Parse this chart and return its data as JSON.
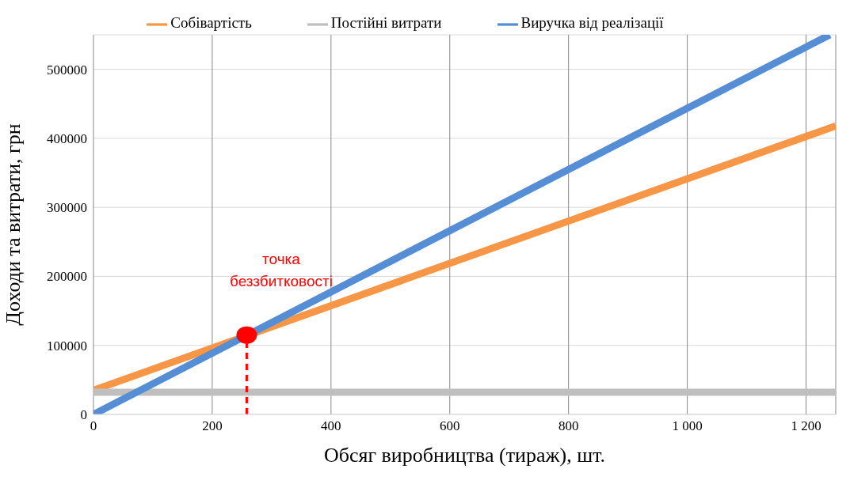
{
  "chart_data": {
    "type": "line",
    "xlabel": "Обсяг виробництва (тираж), шт.",
    "ylabel": "Доходи та витрати, грн",
    "xlim": [
      0,
      1250
    ],
    "ylim": [
      0,
      550000
    ],
    "xticks": [
      0,
      200,
      400,
      600,
      800,
      {
        "value": 1000,
        "label": "1 000"
      },
      {
        "value": 1200,
        "label": "1 200"
      }
    ],
    "yticks": [
      0,
      100000,
      200000,
      300000,
      400000,
      500000
    ],
    "grid": true,
    "legend": "top",
    "marker": "none",
    "line_style": "solid",
    "series": [
      {
        "name": "Собівартість",
        "color": "#f79646",
        "x": [
          0,
          1250
        ],
        "values": [
          35000,
          418000
        ]
      },
      {
        "name": "Постійні витрати",
        "color": "#bfbfbf",
        "x": [
          0,
          1250
        ],
        "values": [
          32000,
          32000
        ]
      },
      {
        "name": "Виручка від реалізації",
        "color": "#558ed5",
        "x": [
          0,
          1240
        ],
        "values": [
          0,
          550000
        ]
      },
      {
        "type": "line",
        "color": "#ff0000",
        "line_style": "dashed",
        "x": [
          258,
          258
        ],
        "values": [
          0,
          115000
        ]
      },
      {
        "type": "scatter",
        "color": "#ff0000",
        "marker": "circle",
        "x": [
          258
        ],
        "values": [
          115000
        ]
      }
    ],
    "annotations": [
      "точка беззбитковості"
    ]
  }
}
